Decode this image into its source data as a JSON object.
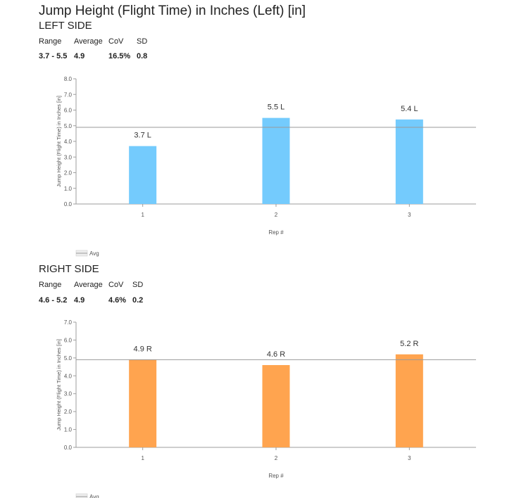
{
  "title": "Jump Height (Flight Time) in Inches (Left) [in]",
  "stats_headers": [
    "Range",
    "Average",
    "CoV",
    "SD"
  ],
  "sections": [
    {
      "key": "left",
      "heading": "LEFT SIDE",
      "stats": {
        "range": "3.7 - 5.5",
        "average": "4.9",
        "cov": "16.5%",
        "sd": "0.8"
      },
      "chart_data": {
        "type": "bar",
        "categories": [
          "1",
          "2",
          "3"
        ],
        "values": [
          3.7,
          5.5,
          5.4
        ],
        "data_labels": [
          "3.7 L",
          "5.5 L",
          "5.4 L"
        ],
        "avg": 4.9,
        "yticks": [
          "0.0",
          "1.0",
          "2.0",
          "3.0",
          "4.0",
          "5.0",
          "6.0",
          "7.0",
          "8.0"
        ],
        "ylim": [
          0,
          8
        ],
        "xlabel": "Rep #",
        "ylabel": "Jump Height (Flight Time) in Inches [in]",
        "legend": "Avg",
        "legend_position": "bottom-left",
        "color": "#74CBFD"
      }
    },
    {
      "key": "right",
      "heading": "RIGHT SIDE",
      "stats": {
        "range": "4.6 - 5.2",
        "average": "4.9",
        "cov": "4.6%",
        "sd": "0.2"
      },
      "chart_data": {
        "type": "bar",
        "categories": [
          "1",
          "2",
          "3"
        ],
        "values": [
          4.9,
          4.6,
          5.2
        ],
        "data_labels": [
          "4.9 R",
          "4.6 R",
          "5.2 R"
        ],
        "avg": 4.9,
        "yticks": [
          "0.0",
          "1.0",
          "2.0",
          "3.0",
          "4.0",
          "5.0",
          "6.0",
          "7.0"
        ],
        "ylim": [
          0,
          7
        ],
        "xlabel": "Rep #",
        "ylabel": "Jump Height (Flight Time) in Inches [in]",
        "legend": "Avg",
        "legend_position": "bottom-left",
        "color": "#FFA44F"
      }
    }
  ]
}
